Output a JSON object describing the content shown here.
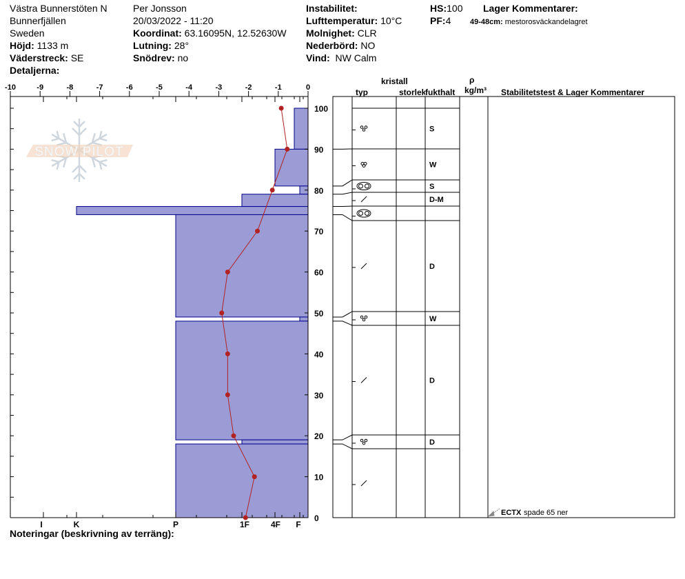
{
  "header": {
    "location": "Västra Bunnerstöten N",
    "area": "Bunnerfjällen",
    "country": "Sweden",
    "elevation_label": "Höjd:",
    "elevation": "1133 m",
    "aspect_label": "Väderstreck:",
    "aspect": "SE",
    "details_label": "Detaljerna:",
    "observer": "Per Jonsson",
    "datetime": "20/03/2022 - 11:20",
    "coord_label": "Koordinat:",
    "coord": "63.16095N, 12.52630W",
    "slope_label": "Lutning:",
    "slope": "28°",
    "drift_label": "Snödrev:",
    "drift": "no",
    "instability_label": "Instabilitet:",
    "airtemp_label": "Lufttemperatur:",
    "airtemp": "10°C",
    "sky_label": "Molnighet:",
    "sky": "CLR",
    "precip_label": "Nederbörd:",
    "precip": "NO",
    "wind_label": "Vind:",
    "wind": "NW Calm",
    "hs_label": "HS:",
    "hs": "100",
    "pf_label": "PF:",
    "pf": "4",
    "layer_comments_label": "Lager Kommentarer:",
    "layer_comment_range": "49-48cm:",
    "layer_comment": "mestorosväckandelagret"
  },
  "notes_label": "Noteringar (beskrivning av terräng):",
  "table_headers": {
    "kristall": "kristall",
    "typ": "typ",
    "storlek": "storlek",
    "fukthalt": "fukthalt",
    "rho": "ρ",
    "density_unit": "kg/m³",
    "comments": "Stabilitetstest & Lager Kommentarer"
  },
  "colors": {
    "bar_fill": "#9b9bd5",
    "bar_stroke": "#00008b",
    "temp_line": "#b22222"
  },
  "chart_data": {
    "type": "bar",
    "temperature_axis": {
      "ticks": [
        "-10",
        "-9",
        "-8",
        "-7",
        "-6",
        "-5",
        "-4",
        "-3",
        "-2",
        "-1",
        "0"
      ],
      "range": [
        -10,
        0
      ]
    },
    "depth_axis": {
      "ticks": [
        "0",
        "10",
        "20",
        "30",
        "40",
        "50",
        "60",
        "70",
        "80",
        "90",
        "100"
      ],
      "range": [
        0,
        100
      ]
    },
    "hardness_axis": {
      "ticks": [
        "I",
        "K",
        "P",
        "1F",
        "4F",
        "F"
      ]
    },
    "hardness_layers": [
      {
        "top": 100,
        "bottom": 90,
        "hardness": "F+"
      },
      {
        "top": 90,
        "bottom": 81,
        "hardness": "4F"
      },
      {
        "top": 81,
        "bottom": 79,
        "hardness": "F"
      },
      {
        "top": 79,
        "bottom": 76,
        "hardness": "1F"
      },
      {
        "top": 76,
        "bottom": 74,
        "hardness": "K"
      },
      {
        "top": 74,
        "bottom": 49,
        "hardness": "P"
      },
      {
        "top": 49,
        "bottom": 48,
        "hardness": "F"
      },
      {
        "top": 48,
        "bottom": 19,
        "hardness": "P"
      },
      {
        "top": 19,
        "bottom": 18,
        "hardness": "1F"
      },
      {
        "top": 18,
        "bottom": 0,
        "hardness": "P"
      }
    ],
    "temperature_profile": [
      {
        "depth": 100,
        "temp": -0.9
      },
      {
        "depth": 90,
        "temp": -0.7
      },
      {
        "depth": 80,
        "temp": -1.2
      },
      {
        "depth": 70,
        "temp": -1.7
      },
      {
        "depth": 60,
        "temp": -2.7
      },
      {
        "depth": 50,
        "temp": -2.9
      },
      {
        "depth": 40,
        "temp": -2.7
      },
      {
        "depth": 30,
        "temp": -2.7
      },
      {
        "depth": 20,
        "temp": -2.5
      },
      {
        "depth": 10,
        "temp": -1.8
      },
      {
        "depth": 0,
        "temp": -2.1
      }
    ],
    "grain_layers": [
      {
        "top": 100,
        "bottom": 90,
        "grain": "melt-rounded",
        "moisture": "S"
      },
      {
        "top": 90,
        "bottom": 81,
        "grain": "melt-cluster",
        "moisture": "W"
      },
      {
        "top": 81,
        "bottom": 79,
        "grain": "melt-freeze",
        "moisture": "S"
      },
      {
        "top": 79,
        "bottom": 76,
        "grain": "slash",
        "moisture": "D-M"
      },
      {
        "top": 76,
        "bottom": 74,
        "grain": "melt-freeze",
        "moisture": ""
      },
      {
        "top": 74,
        "bottom": 49,
        "grain": "slash",
        "moisture": "D"
      },
      {
        "top": 49,
        "bottom": 48,
        "grain": "melt-rounded",
        "moisture": "W"
      },
      {
        "top": 48,
        "bottom": 19,
        "grain": "slash",
        "moisture": "D"
      },
      {
        "top": 19,
        "bottom": 18,
        "grain": "melt-rounded",
        "moisture": "D"
      },
      {
        "top": 18,
        "bottom": 0,
        "grain": "slash",
        "moisture": ""
      }
    ],
    "stability_tests": [
      {
        "depth": 0,
        "test": "ECTX",
        "comment": "spade 65 ner"
      }
    ]
  }
}
